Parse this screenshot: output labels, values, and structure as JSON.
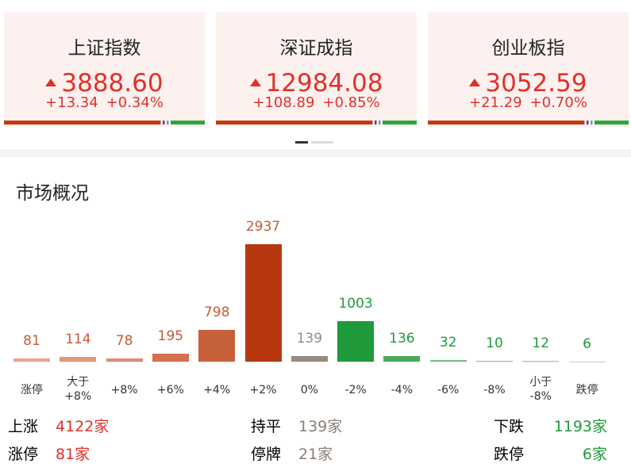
{
  "indices": [
    {
      "name": "上证指数",
      "value": "3888.60",
      "change": "+13.34",
      "percent": "+0.34%"
    },
    {
      "name": "深证成指",
      "value": "12984.08",
      "change": "+108.89",
      "percent": "+0.85%"
    },
    {
      "name": "创业板指",
      "value": "3052.59",
      "change": "+21.29",
      "percent": "+0.70%"
    }
  ],
  "section_title": "市场概况",
  "chart_data": {
    "type": "bar",
    "categories": [
      "涨停",
      "大于\n+8%",
      "+8%",
      "+6%",
      "+4%",
      "+2%",
      "0%",
      "-2%",
      "-4%",
      "-6%",
      "-8%",
      "小于\n-8%",
      "跌停"
    ],
    "values": [
      81,
      114,
      78,
      195,
      798,
      2937,
      139,
      1003,
      136,
      32,
      10,
      12,
      6
    ],
    "colors": [
      "#e6a796",
      "#df987f",
      "#d98d76",
      "#d4714f",
      "#c6603b",
      "#b7380f",
      "#978b7f",
      "#1f9a3b",
      "#4caa5c",
      "#7bbf88",
      "#8cc897",
      "#9ccfa5",
      "#b2d9b9"
    ],
    "label_colors": [
      "#c65a36",
      "#c65a36",
      "#c65a36",
      "#c65a36",
      "#c65a36",
      "#c65a36",
      "#978b7f",
      "#1f9a3b",
      "#1f9a3b",
      "#1f9a3b",
      "#1f9a3b",
      "#1f9a3b",
      "#1f9a3b"
    ]
  },
  "summary": [
    [
      {
        "label": "上涨",
        "value": "4122家"
      },
      {
        "label": "持平",
        "value": "139家"
      },
      {
        "label": "下跌",
        "value": "1193家"
      }
    ],
    [
      {
        "label": "涨停",
        "value": "81家"
      },
      {
        "label": "停牌",
        "value": "21家"
      },
      {
        "label": "跌停",
        "value": "6家"
      }
    ]
  ]
}
